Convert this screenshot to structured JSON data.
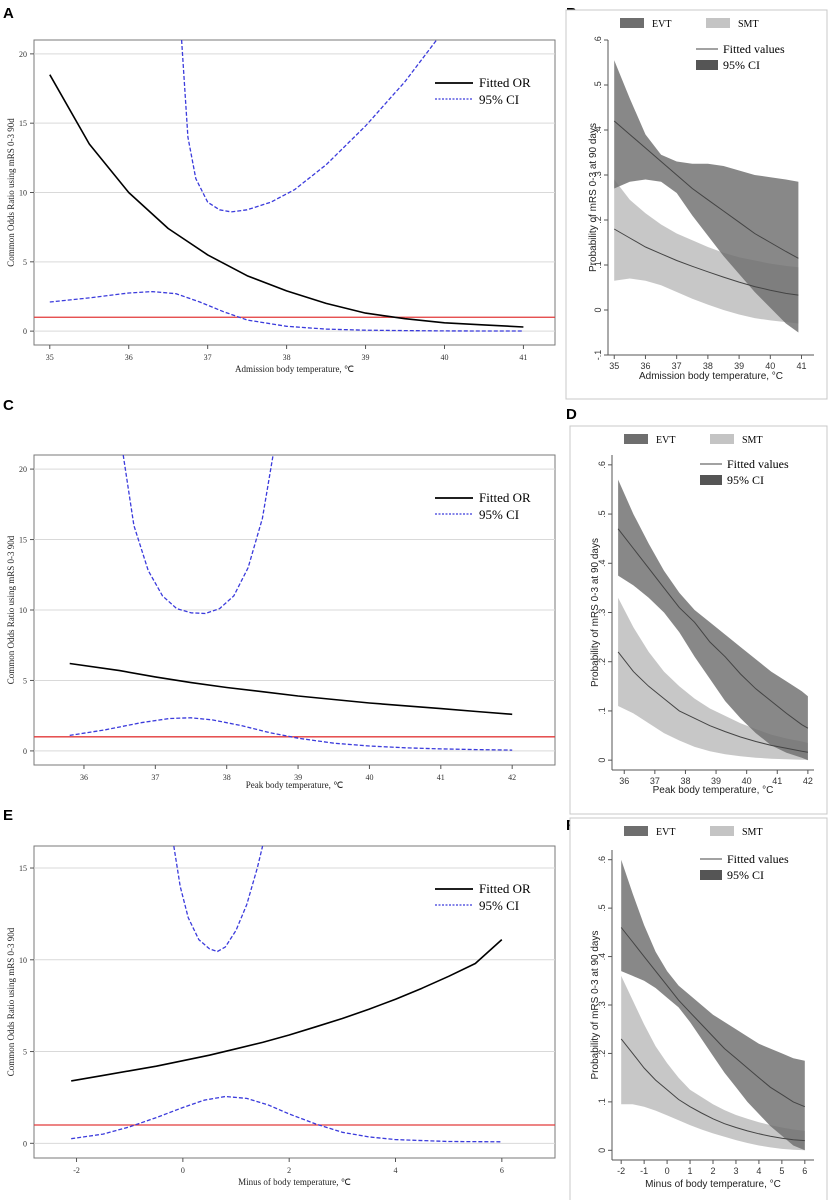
{
  "chart_data": [
    {
      "panel": "A",
      "type": "line",
      "title": "",
      "xlabel": "Admission body temperature, ℃",
      "ylabel": "Common Odds Ratio using mRS 0-3 90d",
      "xlim": [
        34.8,
        41.4
      ],
      "ylim": [
        -1,
        21
      ],
      "xticks": [
        35,
        36,
        37,
        38,
        39,
        40,
        41
      ],
      "yticks": [
        0,
        5,
        10,
        15,
        20
      ],
      "reference_y": 1,
      "legend": [
        "Fitted OR",
        "95% CI"
      ],
      "series": [
        {
          "name": "Fitted OR",
          "style": "solid",
          "color": "#000000",
          "x": [
            35,
            35.5,
            36,
            36.5,
            37,
            37.5,
            38,
            38.5,
            39,
            39.5,
            40,
            40.5,
            41
          ],
          "y": [
            18.5,
            13.5,
            10.0,
            7.4,
            5.5,
            4.0,
            2.9,
            2.0,
            1.3,
            0.9,
            0.6,
            0.45,
            0.3
          ]
        },
        {
          "name": "95% CI upper",
          "style": "dashed",
          "color": "#3b3bdc",
          "x": [
            36.67,
            36.75,
            36.85,
            37.0,
            37.15,
            37.3,
            37.5,
            37.8,
            38.1,
            38.5,
            39.0,
            39.5,
            39.9
          ],
          "y": [
            21,
            14.0,
            11.0,
            9.3,
            8.75,
            8.6,
            8.75,
            9.3,
            10.2,
            12.0,
            14.8,
            18.0,
            21
          ]
        },
        {
          "name": "95% CI lower",
          "style": "dashed",
          "color": "#3b3bdc",
          "x": [
            35,
            35.5,
            36,
            36.3,
            36.6,
            36.9,
            37.2,
            37.5,
            38,
            38.5,
            39,
            39.5,
            40,
            40.5,
            41
          ],
          "y": [
            2.1,
            2.4,
            2.75,
            2.85,
            2.7,
            2.1,
            1.4,
            0.8,
            0.35,
            0.15,
            0.07,
            0.04,
            0.02,
            0.01,
            0.01
          ]
        }
      ]
    },
    {
      "panel": "B",
      "type": "area",
      "xlabel": "Admission body temperature, °C",
      "ylabel": "Probability of mRS 0-3 at 90 days",
      "xlim": [
        34.8,
        41.4
      ],
      "ylim": [
        -0.1,
        0.6
      ],
      "xticks": [
        35,
        36,
        37,
        38,
        39,
        40,
        41
      ],
      "yticks": [
        -0.1,
        0,
        0.1,
        0.2,
        0.3,
        0.4,
        0.5,
        0.6
      ],
      "ytick_labels": [
        "-.1",
        "0",
        ".1",
        ".2",
        ".3",
        ".4",
        ".5",
        ".6"
      ],
      "legend_top": [
        "EVT",
        "SMT"
      ],
      "legend_inner": [
        "Fitted values",
        "95% CI"
      ],
      "x": [
        35,
        35.5,
        36,
        36.5,
        37,
        37.5,
        38,
        38.5,
        39,
        39.5,
        40,
        40.5,
        40.9
      ],
      "series": [
        {
          "name": "EVT",
          "fit": [
            0.42,
            0.39,
            0.36,
            0.33,
            0.3,
            0.27,
            0.245,
            0.22,
            0.195,
            0.17,
            0.15,
            0.13,
            0.115
          ],
          "lower": [
            0.27,
            0.285,
            0.29,
            0.285,
            0.26,
            0.21,
            0.165,
            0.12,
            0.08,
            0.04,
            0.005,
            -0.03,
            -0.05
          ],
          "upper": [
            0.555,
            0.47,
            0.39,
            0.345,
            0.33,
            0.325,
            0.325,
            0.32,
            0.31,
            0.3,
            0.295,
            0.29,
            0.285
          ]
        },
        {
          "name": "SMT",
          "fit": [
            0.18,
            0.16,
            0.14,
            0.125,
            0.11,
            0.097,
            0.085,
            0.073,
            0.062,
            0.052,
            0.044,
            0.037,
            0.033
          ],
          "lower": [
            0.065,
            0.07,
            0.065,
            0.055,
            0.04,
            0.025,
            0.012,
            0.0,
            -0.01,
            -0.018,
            -0.023,
            -0.027,
            -0.03
          ],
          "upper": [
            0.29,
            0.245,
            0.215,
            0.19,
            0.17,
            0.155,
            0.14,
            0.127,
            0.117,
            0.11,
            0.103,
            0.098,
            0.095
          ]
        }
      ]
    },
    {
      "panel": "C",
      "type": "line",
      "title": "",
      "xlabel": "Peak body temperature, ℃",
      "ylabel": "Common Odds Ratio using mRS 0-3 90d",
      "xlim": [
        35.3,
        42.6
      ],
      "ylim": [
        -1,
        21
      ],
      "xticks": [
        36,
        37,
        38,
        39,
        40,
        41,
        42
      ],
      "yticks": [
        0,
        5,
        10,
        15,
        20
      ],
      "reference_y": 1,
      "legend": [
        "Fitted OR",
        "95% CI"
      ],
      "series": [
        {
          "name": "Fitted OR",
          "style": "solid",
          "color": "#000000",
          "x": [
            35.8,
            36.5,
            37,
            37.5,
            38,
            38.5,
            39,
            39.5,
            40,
            40.5,
            41,
            41.5,
            42
          ],
          "y": [
            6.2,
            5.7,
            5.25,
            4.85,
            4.5,
            4.2,
            3.9,
            3.65,
            3.4,
            3.2,
            3.0,
            2.8,
            2.6
          ]
        },
        {
          "name": "95% CI upper",
          "style": "dashed",
          "color": "#3b3bdc",
          "x": [
            36.55,
            36.7,
            36.9,
            37.1,
            37.3,
            37.5,
            37.7,
            37.9,
            38.1,
            38.3,
            38.5,
            38.65
          ],
          "y": [
            21,
            16.0,
            12.8,
            11.0,
            10.1,
            9.8,
            9.75,
            10.1,
            11.0,
            13.0,
            16.5,
            21
          ]
        },
        {
          "name": "95% CI lower",
          "style": "dashed",
          "color": "#3b3bdc",
          "x": [
            35.8,
            36.3,
            36.8,
            37.2,
            37.5,
            37.8,
            38.2,
            38.6,
            39,
            39.5,
            40,
            40.5,
            41,
            41.5,
            42
          ],
          "y": [
            1.1,
            1.5,
            2.0,
            2.3,
            2.35,
            2.2,
            1.8,
            1.3,
            0.9,
            0.55,
            0.35,
            0.22,
            0.14,
            0.09,
            0.06
          ]
        }
      ]
    },
    {
      "panel": "D",
      "type": "area",
      "xlabel": "Peak body temperature, °C",
      "ylabel": "Probability of mRS 0-3 at 90 days",
      "xlim": [
        35.6,
        42.2
      ],
      "ylim": [
        -0.02,
        0.62
      ],
      "xticks": [
        36,
        37,
        38,
        39,
        40,
        41,
        42
      ],
      "yticks": [
        0,
        0.1,
        0.2,
        0.3,
        0.4,
        0.5,
        0.6
      ],
      "ytick_labels": [
        "0",
        ".1",
        ".2",
        ".3",
        ".4",
        ".5",
        ".6"
      ],
      "legend_top": [
        "EVT",
        "SMT"
      ],
      "legend_inner": [
        "Fitted values",
        "95% CI"
      ],
      "x": [
        35.8,
        36.3,
        36.8,
        37.3,
        37.8,
        38.3,
        38.8,
        39.3,
        39.8,
        40.3,
        40.8,
        41.3,
        41.8,
        42
      ],
      "series": [
        {
          "name": "EVT",
          "fit": [
            0.47,
            0.43,
            0.39,
            0.35,
            0.31,
            0.28,
            0.24,
            0.21,
            0.175,
            0.145,
            0.12,
            0.095,
            0.072,
            0.065
          ],
          "lower": [
            0.375,
            0.355,
            0.33,
            0.3,
            0.26,
            0.21,
            0.165,
            0.12,
            0.085,
            0.055,
            0.03,
            0.015,
            0.005,
            0.0
          ],
          "upper": [
            0.57,
            0.5,
            0.44,
            0.385,
            0.34,
            0.305,
            0.28,
            0.255,
            0.23,
            0.205,
            0.18,
            0.16,
            0.14,
            0.13
          ]
        },
        {
          "name": "SMT",
          "fit": [
            0.22,
            0.18,
            0.15,
            0.125,
            0.1,
            0.085,
            0.07,
            0.058,
            0.047,
            0.038,
            0.03,
            0.024,
            0.018,
            0.016
          ],
          "lower": [
            0.11,
            0.095,
            0.075,
            0.055,
            0.04,
            0.027,
            0.018,
            0.012,
            0.008,
            0.005,
            0.003,
            0.002,
            0.001,
            0.001
          ],
          "upper": [
            0.33,
            0.27,
            0.22,
            0.18,
            0.15,
            0.125,
            0.105,
            0.09,
            0.075,
            0.063,
            0.052,
            0.044,
            0.038,
            0.035
          ]
        }
      ]
    },
    {
      "panel": "E",
      "type": "line",
      "title": "",
      "xlabel": "Minus of body temperature, ℃",
      "ylabel": "Common Odds Ratio using mRS 0-3 90d",
      "xlim": [
        -2.8,
        7.0
      ],
      "ylim": [
        -0.8,
        16.2
      ],
      "xticks": [
        -2,
        0,
        2,
        4,
        6
      ],
      "yticks": [
        0,
        5,
        10,
        15
      ],
      "reference_y": 1,
      "legend": [
        "Fitted OR",
        "95% CI"
      ],
      "series": [
        {
          "name": "Fitted OR",
          "style": "solid",
          "color": "#000000",
          "x": [
            -2.1,
            -1.5,
            -1,
            -0.5,
            0,
            0.5,
            1,
            1.5,
            2,
            2.5,
            3,
            3.5,
            4,
            4.5,
            5,
            5.5,
            6
          ],
          "y": [
            3.4,
            3.7,
            3.95,
            4.2,
            4.5,
            4.8,
            5.15,
            5.5,
            5.9,
            6.35,
            6.8,
            7.3,
            7.85,
            8.45,
            9.1,
            9.8,
            11.1
          ]
        },
        {
          "name": "95% CI upper",
          "style": "dashed",
          "color": "#3b3bdc",
          "x": [
            -0.17,
            -0.05,
            0.1,
            0.3,
            0.5,
            0.65,
            0.8,
            1.0,
            1.2,
            1.4,
            1.5
          ],
          "y": [
            16.2,
            14.0,
            12.3,
            11.1,
            10.6,
            10.45,
            10.7,
            11.6,
            13.0,
            15.0,
            16.2
          ]
        },
        {
          "name": "95% CI lower",
          "style": "dashed",
          "color": "#3b3bdc",
          "x": [
            -2.1,
            -1.5,
            -1,
            -0.5,
            0,
            0.4,
            0.8,
            1.2,
            1.6,
            2,
            2.5,
            3,
            3.5,
            4,
            5,
            6
          ],
          "y": [
            0.25,
            0.5,
            0.9,
            1.4,
            1.95,
            2.35,
            2.55,
            2.45,
            2.1,
            1.6,
            1.05,
            0.6,
            0.35,
            0.2,
            0.1,
            0.08
          ]
        }
      ]
    },
    {
      "panel": "F",
      "type": "area",
      "xlabel": "Minus of body temperature, °C",
      "ylabel": "Probability of mRS 0-3 at 90 days",
      "xlim": [
        -2.4,
        6.4
      ],
      "ylim": [
        -0.02,
        0.62
      ],
      "xticks": [
        -2,
        -1,
        0,
        1,
        2,
        3,
        4,
        5,
        6
      ],
      "yticks": [
        0,
        0.1,
        0.2,
        0.3,
        0.4,
        0.5,
        0.6
      ],
      "ytick_labels": [
        "0",
        ".1",
        ".2",
        ".3",
        ".4",
        ".5",
        ".6"
      ],
      "legend_top": [
        "EVT",
        "SMT"
      ],
      "legend_inner": [
        "Fitted values",
        "95% CI"
      ],
      "x": [
        -2,
        -1.5,
        -1,
        -0.5,
        0,
        0.5,
        1,
        1.5,
        2,
        2.5,
        3,
        3.5,
        4,
        4.5,
        5,
        5.5,
        6
      ],
      "series": [
        {
          "name": "EVT",
          "fit": [
            0.46,
            0.43,
            0.4,
            0.37,
            0.34,
            0.31,
            0.285,
            0.26,
            0.235,
            0.21,
            0.19,
            0.17,
            0.15,
            0.13,
            0.115,
            0.1,
            0.09
          ],
          "lower": [
            0.37,
            0.36,
            0.35,
            0.335,
            0.315,
            0.295,
            0.265,
            0.23,
            0.195,
            0.16,
            0.13,
            0.1,
            0.075,
            0.05,
            0.03,
            0.01,
            0.0
          ],
          "upper": [
            0.6,
            0.53,
            0.465,
            0.41,
            0.37,
            0.34,
            0.32,
            0.3,
            0.28,
            0.265,
            0.25,
            0.235,
            0.22,
            0.21,
            0.2,
            0.19,
            0.185
          ]
        },
        {
          "name": "SMT",
          "fit": [
            0.23,
            0.2,
            0.17,
            0.145,
            0.125,
            0.105,
            0.09,
            0.077,
            0.065,
            0.055,
            0.047,
            0.04,
            0.034,
            0.029,
            0.025,
            0.022,
            0.02
          ],
          "lower": [
            0.095,
            0.095,
            0.09,
            0.082,
            0.072,
            0.062,
            0.052,
            0.043,
            0.035,
            0.028,
            0.021,
            0.015,
            0.01,
            0.006,
            0.003,
            0.001,
            0.0
          ],
          "upper": [
            0.36,
            0.31,
            0.26,
            0.215,
            0.18,
            0.15,
            0.125,
            0.11,
            0.095,
            0.083,
            0.073,
            0.065,
            0.058,
            0.052,
            0.047,
            0.043,
            0.04
          ]
        }
      ]
    }
  ],
  "colors": {
    "ci_line": "#3b3bdc",
    "reference_line": "#e23a3a",
    "or_line": "#000000",
    "evt_band": "#6e6e6e",
    "smt_band": "#c4c4c4",
    "fit_line": "#444444",
    "plot_border": "#7a7a7a",
    "grid": "#d9d9d9"
  }
}
